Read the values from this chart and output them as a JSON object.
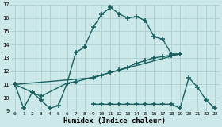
{
  "xlabel": "Humidex (Indice chaleur)",
  "ylabel": "",
  "xlim": [
    -0.5,
    23.5
  ],
  "ylim": [
    9,
    17
  ],
  "background_color": "#cce8e8",
  "grid_color": "#aacfcf",
  "line_color": "#1a6060",
  "line_width": 1.0,
  "marker": "+",
  "markersize": 4,
  "markeredgewidth": 1.2,
  "lines": [
    {
      "x": [
        0,
        1,
        2,
        3,
        4,
        5,
        6,
        7,
        8,
        9,
        10,
        11,
        12,
        13,
        14,
        15,
        16,
        17,
        18,
        19
      ],
      "y": [
        11,
        9.2,
        10.4,
        9.8,
        9.2,
        9.4,
        11.1,
        13.4,
        13.8,
        15.3,
        16.3,
        16.8,
        16.3,
        16.0,
        16.1,
        15.8,
        14.6,
        14.4,
        13.3,
        13.3
      ]
    },
    {
      "x": [
        0,
        2,
        3,
        6,
        7,
        19
      ],
      "y": [
        11,
        10.4,
        10.1,
        11.1,
        11.2,
        13.3
      ]
    },
    {
      "x": [
        0,
        9,
        10,
        11,
        12,
        13,
        14,
        15,
        16,
        17,
        18,
        19
      ],
      "y": [
        11,
        11.5,
        11.7,
        11.9,
        12.1,
        12.3,
        12.6,
        12.8,
        13.0,
        13.1,
        13.2,
        13.3
      ]
    },
    {
      "x": [
        9,
        10,
        11,
        12,
        13,
        14,
        15,
        16,
        17,
        18,
        19,
        20,
        21,
        22,
        23
      ],
      "y": [
        9.5,
        9.5,
        9.5,
        9.5,
        9.5,
        9.5,
        9.5,
        9.5,
        9.5,
        9.5,
        9.2,
        11.5,
        10.8,
        9.8,
        9.2
      ]
    }
  ]
}
